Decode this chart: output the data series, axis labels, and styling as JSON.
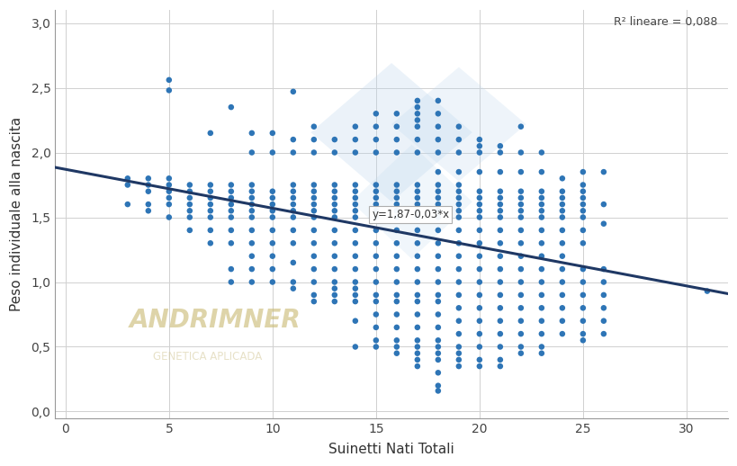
{
  "title": "",
  "xlabel": "Suinetti Nati Totali",
  "ylabel": "Peso individuale alla nascita",
  "xlim": [
    -0.5,
    32
  ],
  "ylim": [
    -0.05,
    3.1
  ],
  "xticks": [
    0,
    5,
    10,
    15,
    20,
    25,
    30
  ],
  "yticks": [
    0.0,
    0.5,
    1.0,
    1.5,
    2.0,
    2.5,
    3.0
  ],
  "ytick_labels": [
    "0,0",
    "0,5",
    "1,0",
    "1,5",
    "2,0",
    "2,5",
    "3,0"
  ],
  "regression_intercept": 1.87,
  "regression_slope": -0.03,
  "regression_label": "y=1,87-0,03*x",
  "r2_label": "R² lineare = 0,088",
  "dot_color": "#2E75B6",
  "line_color": "#1F3864",
  "background_color": "#ffffff",
  "grid_color": "#d0d0d0",
  "watermark_color1": "#c8b870",
  "watermark_color2": "#d4c99a",
  "diamond_color": "#BDD7EE",
  "watermark_text1": "ANDRIMNER",
  "watermark_text2": "GENETICA APLICADA",
  "scatter_data": {
    "3": [
      1.6,
      1.75,
      1.8
    ],
    "4": [
      1.55,
      1.6,
      1.7,
      1.75,
      1.8
    ],
    "5": [
      1.5,
      1.6,
      1.65,
      1.7,
      1.75,
      1.8,
      2.48,
      2.56
    ],
    "6": [
      1.4,
      1.5,
      1.55,
      1.6,
      1.65,
      1.7,
      1.75
    ],
    "7": [
      1.3,
      1.4,
      1.5,
      1.55,
      1.6,
      1.65,
      1.7,
      1.75,
      2.15
    ],
    "8": [
      1.0,
      1.1,
      1.3,
      1.4,
      1.5,
      1.55,
      1.6,
      1.65,
      1.7,
      1.75,
      2.35
    ],
    "9": [
      1.0,
      1.1,
      1.2,
      1.3,
      1.4,
      1.5,
      1.55,
      1.6,
      1.65,
      1.7,
      1.75,
      2.0,
      2.15
    ],
    "10": [
      1.0,
      1.1,
      1.2,
      1.3,
      1.4,
      1.5,
      1.55,
      1.6,
      1.65,
      1.7,
      2.0,
      2.15
    ],
    "11": [
      0.95,
      1.0,
      1.15,
      1.3,
      1.4,
      1.5,
      1.55,
      1.6,
      1.65,
      1.7,
      1.75,
      2.0,
      2.1,
      2.47
    ],
    "12": [
      0.85,
      0.9,
      1.0,
      1.1,
      1.2,
      1.3,
      1.4,
      1.5,
      1.55,
      1.6,
      1.65,
      1.7,
      1.75,
      2.0,
      2.1,
      2.2
    ],
    "13": [
      0.85,
      0.9,
      0.95,
      1.0,
      1.1,
      1.2,
      1.3,
      1.4,
      1.5,
      1.55,
      1.6,
      1.65,
      1.7,
      1.75,
      2.0,
      2.1
    ],
    "14": [
      0.5,
      0.7,
      0.85,
      0.9,
      0.95,
      1.0,
      1.1,
      1.2,
      1.3,
      1.4,
      1.5,
      1.55,
      1.6,
      1.65,
      1.7,
      1.75,
      2.0,
      2.1,
      2.2
    ],
    "15": [
      0.5,
      0.55,
      0.65,
      0.75,
      0.85,
      0.9,
      1.0,
      1.1,
      1.2,
      1.3,
      1.4,
      1.5,
      1.55,
      1.6,
      1.65,
      1.7,
      1.75,
      2.0,
      2.1,
      2.2,
      2.3
    ],
    "16": [
      0.45,
      0.5,
      0.55,
      0.65,
      0.75,
      0.85,
      0.9,
      1.0,
      1.1,
      1.2,
      1.3,
      1.4,
      1.5,
      1.55,
      1.6,
      1.65,
      1.7,
      1.75,
      2.0,
      2.1,
      2.2,
      2.3
    ],
    "17": [
      0.35,
      0.4,
      0.45,
      0.5,
      0.55,
      0.65,
      0.75,
      0.85,
      0.9,
      1.0,
      1.1,
      1.2,
      1.3,
      1.4,
      1.5,
      1.55,
      1.6,
      1.65,
      1.7,
      1.75,
      2.0,
      2.1,
      2.2,
      2.25,
      2.3,
      2.35,
      2.4
    ],
    "18": [
      0.16,
      0.2,
      0.3,
      0.4,
      0.45,
      0.5,
      0.55,
      0.65,
      0.75,
      0.85,
      0.9,
      1.0,
      1.1,
      1.2,
      1.3,
      1.4,
      1.5,
      1.55,
      1.6,
      1.65,
      1.7,
      1.75,
      1.85,
      2.0,
      2.1,
      2.2,
      2.3,
      2.4
    ],
    "19": [
      0.35,
      0.4,
      0.45,
      0.5,
      0.6,
      0.7,
      0.8,
      0.9,
      1.0,
      1.1,
      1.2,
      1.3,
      1.4,
      1.5,
      1.55,
      1.6,
      1.65,
      1.7,
      1.75,
      1.85,
      2.0,
      2.1,
      2.2
    ],
    "20": [
      0.35,
      0.4,
      0.5,
      0.6,
      0.7,
      0.8,
      0.9,
      1.0,
      1.1,
      1.2,
      1.3,
      1.4,
      1.5,
      1.55,
      1.6,
      1.65,
      1.7,
      1.85,
      2.0,
      2.05,
      2.1
    ],
    "21": [
      0.35,
      0.4,
      0.5,
      0.6,
      0.7,
      0.8,
      0.9,
      1.0,
      1.1,
      1.2,
      1.3,
      1.4,
      1.5,
      1.55,
      1.6,
      1.65,
      1.7,
      1.85,
      2.0,
      2.05
    ],
    "22": [
      0.45,
      0.5,
      0.6,
      0.7,
      0.8,
      0.9,
      1.0,
      1.1,
      1.2,
      1.3,
      1.4,
      1.5,
      1.55,
      1.6,
      1.65,
      1.7,
      1.85,
      2.0,
      2.2
    ],
    "23": [
      0.45,
      0.5,
      0.6,
      0.7,
      0.8,
      0.9,
      1.0,
      1.1,
      1.2,
      1.3,
      1.4,
      1.5,
      1.55,
      1.6,
      1.65,
      1.7,
      1.85,
      2.0
    ],
    "24": [
      0.6,
      0.7,
      0.8,
      0.9,
      1.0,
      1.1,
      1.2,
      1.3,
      1.4,
      1.5,
      1.55,
      1.6,
      1.65,
      1.7,
      1.8
    ],
    "25": [
      0.55,
      0.6,
      0.7,
      0.8,
      0.9,
      1.0,
      1.1,
      1.3,
      1.4,
      1.5,
      1.55,
      1.6,
      1.65,
      1.7,
      1.75,
      1.85
    ],
    "26": [
      0.6,
      0.7,
      0.8,
      0.9,
      1.0,
      1.1,
      1.45,
      1.6,
      1.85
    ],
    "31": [
      0.93
    ]
  }
}
